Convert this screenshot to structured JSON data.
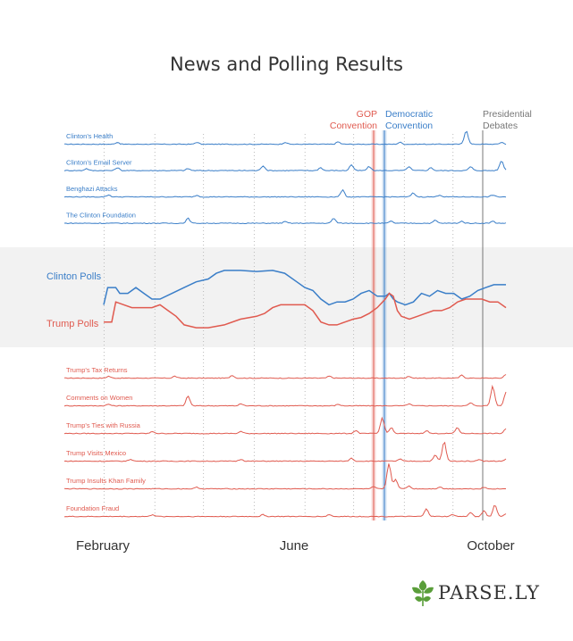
{
  "chart_data": {
    "type": "line",
    "title": "News and Polling Results",
    "x_labels": [
      "February",
      "June",
      "October"
    ],
    "events": [
      {
        "label_lines": [
          "GOP",
          "Convention"
        ],
        "color": "#e05a4f"
      },
      {
        "label_lines": [
          "Democratic",
          "Convention"
        ],
        "color": "#3a7ec8"
      },
      {
        "label_lines": [
          "Presidential",
          "Debates"
        ],
        "color": "#777777"
      }
    ],
    "clinton_topics": [
      {
        "name": "Clinton's Health",
        "spikes": [
          [
            0.12,
            1
          ],
          [
            0.3,
            1
          ],
          [
            0.5,
            1
          ],
          [
            0.62,
            1.2
          ],
          [
            0.76,
            1
          ],
          [
            0.91,
            7
          ],
          [
            0.99,
            1
          ]
        ]
      },
      {
        "name": "Clinton's Email Server",
        "spikes": [
          [
            0.05,
            1
          ],
          [
            0.12,
            1.5
          ],
          [
            0.28,
            1
          ],
          [
            0.45,
            2.5
          ],
          [
            0.58,
            1.5
          ],
          [
            0.65,
            3
          ],
          [
            0.69,
            2
          ],
          [
            0.78,
            2
          ],
          [
            0.83,
            1.5
          ],
          [
            0.92,
            2
          ],
          [
            0.99,
            5
          ]
        ]
      },
      {
        "name": "Benghazi Attacks",
        "spikes": [
          [
            0.1,
            1
          ],
          [
            0.3,
            0.8
          ],
          [
            0.63,
            3.5
          ],
          [
            0.79,
            2
          ],
          [
            0.85,
            1
          ],
          [
            0.97,
            1
          ]
        ]
      },
      {
        "name": "The Clinton Foundation",
        "spikes": [
          [
            0.28,
            2.5
          ],
          [
            0.5,
            0.8
          ],
          [
            0.61,
            2.5
          ],
          [
            0.74,
            1
          ],
          [
            0.84,
            1.5
          ],
          [
            0.9,
            1
          ],
          [
            0.97,
            1
          ]
        ]
      }
    ],
    "polls": {
      "series": [
        {
          "name": "Clinton Polls",
          "color": "#3a7ec8",
          "values": [
            [
              0.0,
              44
            ],
            [
              0.01,
              47
            ],
            [
              0.03,
              47
            ],
            [
              0.04,
              46
            ],
            [
              0.06,
              46
            ],
            [
              0.08,
              47
            ],
            [
              0.1,
              46
            ],
            [
              0.12,
              45
            ],
            [
              0.14,
              45
            ],
            [
              0.17,
              46
            ],
            [
              0.2,
              47
            ],
            [
              0.23,
              48
            ],
            [
              0.26,
              48.5
            ],
            [
              0.28,
              49.5
            ],
            [
              0.3,
              50
            ],
            [
              0.34,
              50
            ],
            [
              0.38,
              49.8
            ],
            [
              0.42,
              50
            ],
            [
              0.45,
              49.5
            ],
            [
              0.48,
              48
            ],
            [
              0.5,
              47
            ],
            [
              0.52,
              46.5
            ],
            [
              0.54,
              45
            ],
            [
              0.56,
              44
            ],
            [
              0.58,
              44.5
            ],
            [
              0.6,
              44.5
            ],
            [
              0.62,
              45
            ],
            [
              0.64,
              46
            ],
            [
              0.66,
              46.5
            ],
            [
              0.68,
              45.5
            ],
            [
              0.7,
              45.5
            ],
            [
              0.71,
              46
            ],
            [
              0.72,
              45
            ],
            [
              0.73,
              44.5
            ],
            [
              0.75,
              44
            ],
            [
              0.77,
              44.5
            ],
            [
              0.79,
              46
            ],
            [
              0.81,
              45.5
            ],
            [
              0.83,
              46.5
            ],
            [
              0.85,
              46
            ],
            [
              0.87,
              46
            ],
            [
              0.89,
              45
            ],
            [
              0.91,
              45.5
            ],
            [
              0.93,
              46.5
            ],
            [
              0.95,
              47
            ],
            [
              0.97,
              47.5
            ],
            [
              1.0,
              47.5
            ]
          ]
        },
        {
          "name": "Trump Polls",
          "color": "#e05a4f",
          "values": [
            [
              0.0,
              41
            ],
            [
              0.02,
              41
            ],
            [
              0.03,
              44.5
            ],
            [
              0.05,
              44
            ],
            [
              0.07,
              43.5
            ],
            [
              0.1,
              43.5
            ],
            [
              0.12,
              43.5
            ],
            [
              0.14,
              44
            ],
            [
              0.16,
              43
            ],
            [
              0.18,
              42
            ],
            [
              0.2,
              40.5
            ],
            [
              0.23,
              40
            ],
            [
              0.26,
              40
            ],
            [
              0.3,
              40.5
            ],
            [
              0.34,
              41.5
            ],
            [
              0.38,
              42
            ],
            [
              0.4,
              42.5
            ],
            [
              0.42,
              43.5
            ],
            [
              0.44,
              44
            ],
            [
              0.46,
              44
            ],
            [
              0.48,
              44
            ],
            [
              0.5,
              44
            ],
            [
              0.52,
              43
            ],
            [
              0.54,
              41
            ],
            [
              0.56,
              40.5
            ],
            [
              0.58,
              40.5
            ],
            [
              0.6,
              41
            ],
            [
              0.62,
              41.5
            ],
            [
              0.64,
              41.8
            ],
            [
              0.66,
              42.5
            ],
            [
              0.68,
              43.5
            ],
            [
              0.7,
              45
            ],
            [
              0.71,
              46
            ],
            [
              0.72,
              45.5
            ],
            [
              0.73,
              43
            ],
            [
              0.74,
              42
            ],
            [
              0.76,
              41.5
            ],
            [
              0.78,
              42
            ],
            [
              0.8,
              42.5
            ],
            [
              0.82,
              43
            ],
            [
              0.84,
              43
            ],
            [
              0.86,
              43.5
            ],
            [
              0.88,
              44.5
            ],
            [
              0.9,
              45
            ],
            [
              0.92,
              45
            ],
            [
              0.94,
              45
            ],
            [
              0.96,
              44.5
            ],
            [
              0.98,
              44.5
            ],
            [
              1.0,
              43.5
            ]
          ]
        }
      ],
      "ylim": [
        38,
        52
      ]
    },
    "trump_topics": [
      {
        "name": "Trump's Tax Returns",
        "spikes": [
          [
            0.1,
            1
          ],
          [
            0.25,
            1
          ],
          [
            0.38,
            1.5
          ],
          [
            0.6,
            1
          ],
          [
            0.78,
            1
          ],
          [
            0.9,
            1.5
          ],
          [
            1.0,
            2
          ]
        ]
      },
      {
        "name": "Comments on Women",
        "spikes": [
          [
            0.1,
            0.8
          ],
          [
            0.28,
            5
          ],
          [
            0.4,
            1
          ],
          [
            0.62,
            0.8
          ],
          [
            0.78,
            1
          ],
          [
            0.92,
            1.5
          ],
          [
            0.97,
            10
          ],
          [
            1.0,
            7
          ]
        ]
      },
      {
        "name": "Trump's Ties with Russia",
        "spikes": [
          [
            0.2,
            1
          ],
          [
            0.4,
            1
          ],
          [
            0.66,
            1.5
          ],
          [
            0.72,
            8
          ],
          [
            0.74,
            3
          ],
          [
            0.82,
            1.5
          ],
          [
            0.89,
            3
          ],
          [
            1.0,
            2.5
          ]
        ]
      },
      {
        "name": "Trump Visits Mexico",
        "spikes": [
          [
            0.15,
            1
          ],
          [
            0.4,
            1
          ],
          [
            0.65,
            1.5
          ],
          [
            0.76,
            1
          ],
          [
            0.84,
            3
          ],
          [
            0.86,
            10
          ],
          [
            0.94,
            1
          ],
          [
            1.0,
            1
          ]
        ]
      },
      {
        "name": "Trump Insults Khan Family",
        "spikes": [
          [
            0.3,
            0.8
          ],
          [
            0.7,
            1
          ],
          [
            0.735,
            13
          ],
          [
            0.75,
            5
          ],
          [
            0.78,
            1.5
          ],
          [
            0.85,
            1
          ],
          [
            0.95,
            0.8
          ]
        ]
      },
      {
        "name": "Foundation Fraud",
        "spikes": [
          [
            0.2,
            1
          ],
          [
            0.45,
            1
          ],
          [
            0.6,
            1
          ],
          [
            0.82,
            4
          ],
          [
            0.88,
            1
          ],
          [
            0.92,
            2
          ],
          [
            0.95,
            3
          ],
          [
            0.975,
            6
          ],
          [
            1.0,
            1.5
          ]
        ]
      }
    ],
    "grid": true
  },
  "brand": {
    "logo_text": "PARSE.LY",
    "logo_icon": "ivy-leaf-icon"
  }
}
